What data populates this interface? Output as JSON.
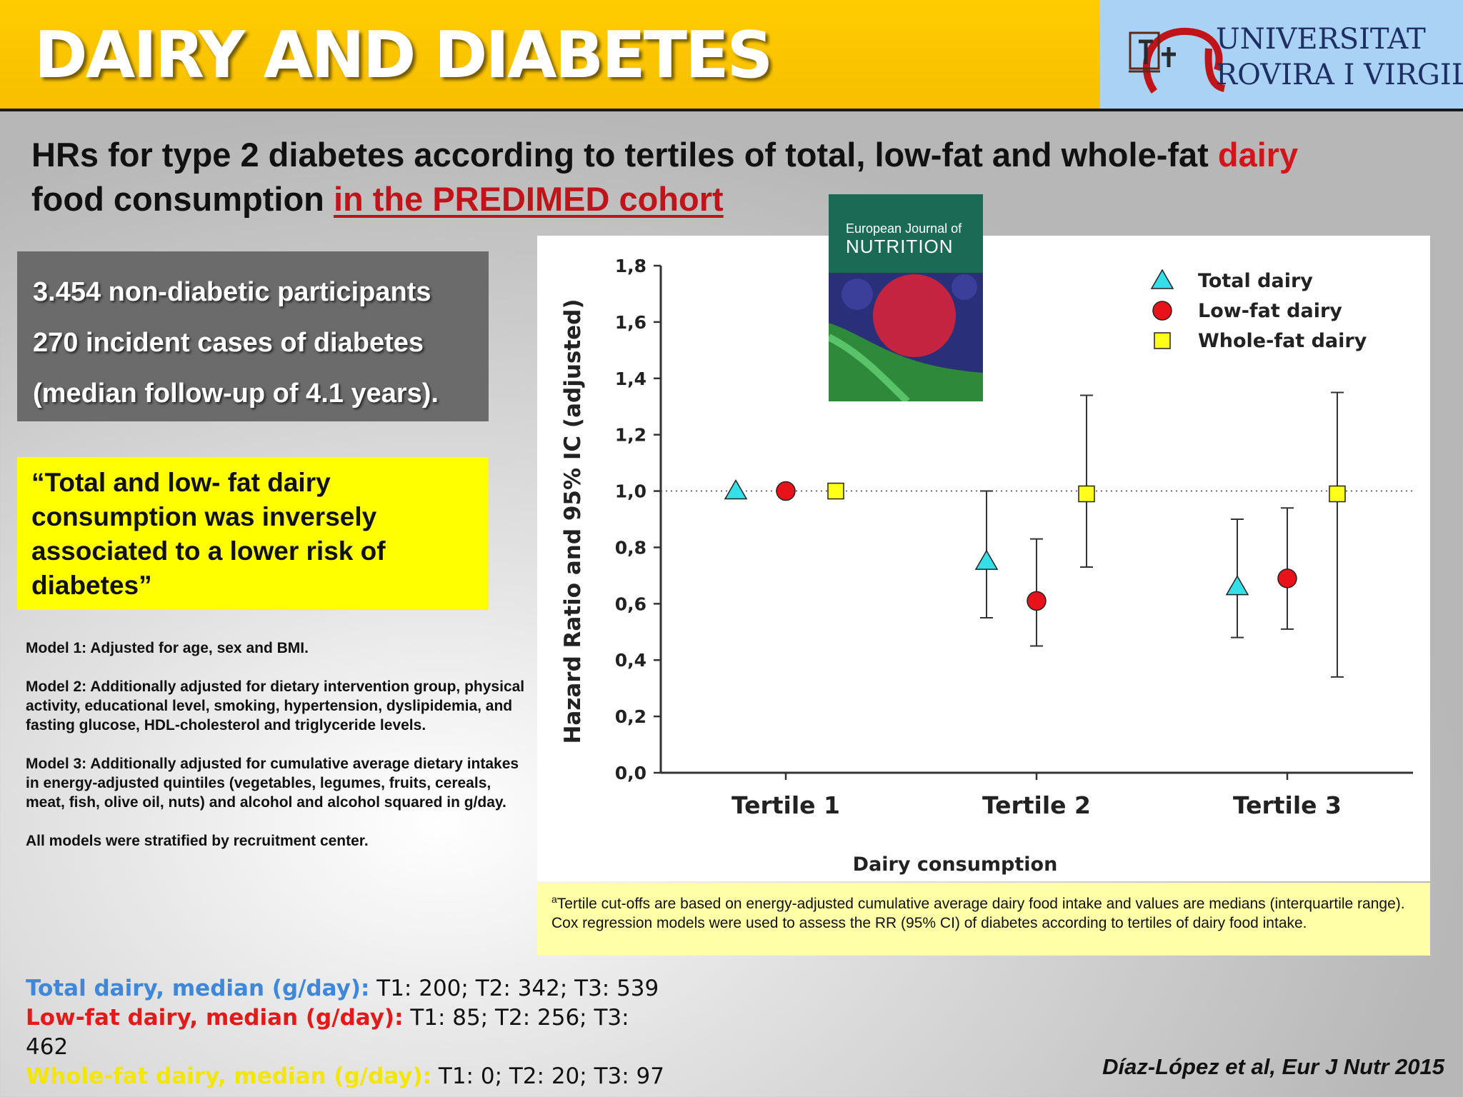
{
  "header": {
    "title": "DAIRY AND DIABETES",
    "logo_line1": "UNIVERSITAT",
    "logo_line2": "ROVIRA I VIRGILI"
  },
  "subtitle": {
    "part1": "HRs for type 2 diabetes according to tertiles of total, low-fat and whole-fat ",
    "highlight": "dairy",
    "part2": "food consumption ",
    "underlined": "in the PREDIMED cohort"
  },
  "summary_box": {
    "lines": [
      "3.454 non-diabetic participants",
      "270 incident cases of diabetes",
      "(median follow-up of 4.1 years)."
    ]
  },
  "quote_box": {
    "text": "“Total and low- fat dairy consumption was inversely associated to a lower risk of diabetes”"
  },
  "models": [
    "Model 1: Adjusted for age, sex and BMI.",
    "Model 2: Additionally adjusted for dietary intervention group, physical activity, educational level, smoking, hypertension, dyslipidemia, and fasting glucose, HDL-cholesterol and triglyceride levels.",
    "Model 3: Additionally adjusted for cumulative average dietary intakes in energy-adjusted quintiles (vegetables, legumes, fruits, cereals, meat, fish, olive oil, nuts) and alcohol and alcohol squared in g/day.",
    "All models were stratified by recruitment center."
  ],
  "journal_cover": {
    "title_small": "European Journal of",
    "title_big": "NUTRITION"
  },
  "chart_data": {
    "type": "scatter",
    "subtype": "point-estimate-with-error-bars",
    "xlabel": "Dairy consumption",
    "ylabel": "Hazard Ratio and 95% IC (adjusted)",
    "categories": [
      "Tertile 1",
      "Tertile 2",
      "Tertile 3"
    ],
    "ylim": [
      0.0,
      1.8
    ],
    "yticks": [
      "0,0",
      "0,2",
      "0,4",
      "0,6",
      "0,8",
      "1,0",
      "1,2",
      "1,4",
      "1,6",
      "1,8"
    ],
    "reference_line": 1.0,
    "grid": false,
    "legend_position": "top-right",
    "series": [
      {
        "name": "Total dairy",
        "marker": "triangle",
        "color": "#33e0e8",
        "values": [
          1.0,
          0.75,
          0.66
        ],
        "ci_low": [
          1.0,
          0.55,
          0.48
        ],
        "ci_high": [
          1.0,
          1.0,
          0.9
        ]
      },
      {
        "name": "Low-fat dairy",
        "marker": "circle",
        "color": "#e8121a",
        "values": [
          1.0,
          0.61,
          0.69
        ],
        "ci_low": [
          1.0,
          0.45,
          0.51
        ],
        "ci_high": [
          1.0,
          0.83,
          0.94
        ]
      },
      {
        "name": "Whole-fat dairy",
        "marker": "square",
        "color": "#ffff1a",
        "values": [
          1.0,
          0.99,
          0.99
        ],
        "ci_low": [
          1.0,
          0.73,
          0.34
        ],
        "ci_high": [
          1.0,
          1.34,
          1.35
        ]
      }
    ]
  },
  "footnote": {
    "line1_sup": "a",
    "line1": "Tertile cut-offs are based on energy-adjusted cumulative average dairy food intake and values are medians (interquartile range).",
    "line2": "Cox regression models were used to assess the RR (95% CI) of diabetes according to tertiles of dairy food intake."
  },
  "medians": [
    {
      "label": "Total dairy, median (g/day):",
      "values": " T1: 200; T2: 342; T3: 539",
      "color": "#3f87d8"
    },
    {
      "label": "Low-fat dairy, median (g/day):",
      "values": " T1: 85; T2: 256; T3: 462",
      "color": "#e21a1a"
    },
    {
      "label": "Whole-fat dairy, median (g/day):",
      "values": " T1: 0; T2: 20; T3: 97",
      "color": "#f3e600"
    }
  ],
  "citation": "Díaz-López  et al, Eur J Nutr 2015"
}
